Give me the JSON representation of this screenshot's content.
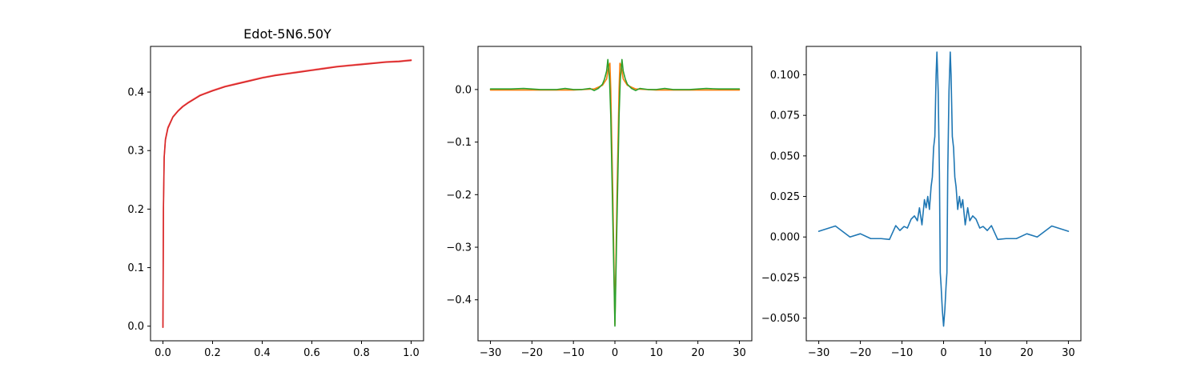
{
  "chart_data": [
    {
      "type": "line",
      "title": "Edot-5N6.50Y",
      "xlim": [
        -0.05,
        1.05
      ],
      "ylim": [
        -0.025,
        0.478
      ],
      "xticks": [
        "0.0",
        "0.2",
        "0.4",
        "0.6",
        "0.8",
        "1.0"
      ],
      "yticks": [
        "0.0",
        "0.1",
        "0.2",
        "0.3",
        "0.4"
      ],
      "grid": false,
      "series": [
        {
          "color": "#ff6f6f",
          "points": [
            [
              0,
              -0.002
            ],
            [
              0.002,
              0.2
            ],
            [
              0.005,
              0.29
            ],
            [
              0.01,
              0.32
            ],
            [
              0.02,
              0.34
            ],
            [
              0.04,
              0.358
            ],
            [
              0.06,
              0.368
            ],
            [
              0.08,
              0.376
            ],
            [
              0.1,
              0.382
            ],
            [
              0.15,
              0.395
            ],
            [
              0.2,
              0.403
            ],
            [
              0.25,
              0.41
            ],
            [
              0.3,
              0.415
            ],
            [
              0.35,
              0.42
            ],
            [
              0.4,
              0.425
            ],
            [
              0.45,
              0.429
            ],
            [
              0.5,
              0.432
            ],
            [
              0.55,
              0.435
            ],
            [
              0.6,
              0.438
            ],
            [
              0.65,
              0.441
            ],
            [
              0.7,
              0.444
            ],
            [
              0.75,
              0.446
            ],
            [
              0.8,
              0.448
            ],
            [
              0.85,
              0.45
            ],
            [
              0.9,
              0.452
            ],
            [
              0.95,
              0.453
            ],
            [
              1.0,
              0.455
            ]
          ]
        },
        {
          "color": "#d62728",
          "points": [
            [
              0,
              -0.002
            ],
            [
              0.002,
              0.2
            ],
            [
              0.005,
              0.288
            ],
            [
              0.01,
              0.318
            ],
            [
              0.02,
              0.338
            ],
            [
              0.04,
              0.357
            ],
            [
              0.06,
              0.367
            ],
            [
              0.08,
              0.375
            ],
            [
              0.1,
              0.381
            ],
            [
              0.15,
              0.394
            ],
            [
              0.2,
              0.402
            ],
            [
              0.25,
              0.409
            ],
            [
              0.3,
              0.414
            ],
            [
              0.35,
              0.419
            ],
            [
              0.4,
              0.424
            ],
            [
              0.45,
              0.428
            ],
            [
              0.5,
              0.431
            ],
            [
              0.55,
              0.434
            ],
            [
              0.6,
              0.437
            ],
            [
              0.65,
              0.44
            ],
            [
              0.7,
              0.443
            ],
            [
              0.75,
              0.445
            ],
            [
              0.8,
              0.447
            ],
            [
              0.85,
              0.449
            ],
            [
              0.9,
              0.451
            ],
            [
              0.95,
              0.452
            ],
            [
              1.0,
              0.454
            ]
          ]
        }
      ]
    },
    {
      "type": "line",
      "xlim": [
        -33,
        33
      ],
      "ylim": [
        -0.478,
        0.082
      ],
      "xticks": [
        "−30",
        "−20",
        "−10",
        "0",
        "10",
        "20",
        "30"
      ],
      "yticks": [
        "0.0",
        "−0.1",
        "−0.2",
        "−0.3",
        "−0.4"
      ],
      "grid": false,
      "series": [
        {
          "color": "#ff7f0e",
          "points": [
            [
              -30,
              -0.001
            ],
            [
              -20,
              -0.001
            ],
            [
              -10,
              -0.001
            ],
            [
              -5,
              0.001
            ],
            [
              -3,
              0.008
            ],
            [
              -2,
              0.02
            ],
            [
              -1.5,
              0.045
            ],
            [
              -1.2,
              0.05
            ],
            [
              -1,
              0.0
            ],
            [
              -0.5,
              -0.2
            ],
            [
              0,
              -0.447
            ],
            [
              0.5,
              -0.2
            ],
            [
              1,
              0.0
            ],
            [
              1.2,
              0.05
            ],
            [
              1.5,
              0.045
            ],
            [
              2,
              0.02
            ],
            [
              3,
              0.008
            ],
            [
              5,
              0.001
            ],
            [
              10,
              -0.001
            ],
            [
              20,
              -0.001
            ],
            [
              30,
              -0.001
            ]
          ]
        },
        {
          "color": "#2ca02c",
          "points": [
            [
              -30,
              0.001
            ],
            [
              -25,
              0.001
            ],
            [
              -22,
              0.002
            ],
            [
              -18,
              0.0
            ],
            [
              -14,
              0.0
            ],
            [
              -12,
              0.002
            ],
            [
              -10,
              0.0
            ],
            [
              -8,
              0.0
            ],
            [
              -6,
              0.002
            ],
            [
              -5,
              -0.002
            ],
            [
              -4,
              0.002
            ],
            [
              -3,
              0.01
            ],
            [
              -2.5,
              0.02
            ],
            [
              -2,
              0.035
            ],
            [
              -1.7,
              0.057
            ],
            [
              -1.3,
              0.02
            ],
            [
              -1,
              -0.05
            ],
            [
              -0.5,
              -0.25
            ],
            [
              0,
              -0.45
            ],
            [
              0.5,
              -0.25
            ],
            [
              1,
              -0.05
            ],
            [
              1.3,
              0.02
            ],
            [
              1.7,
              0.057
            ],
            [
              2,
              0.035
            ],
            [
              2.5,
              0.02
            ],
            [
              3,
              0.01
            ],
            [
              4,
              0.002
            ],
            [
              5,
              -0.002
            ],
            [
              6,
              0.002
            ],
            [
              8,
              0.0
            ],
            [
              10,
              0.0
            ],
            [
              12,
              0.002
            ],
            [
              14,
              0.0
            ],
            [
              18,
              0.0
            ],
            [
              22,
              0.002
            ],
            [
              25,
              0.001
            ],
            [
              30,
              0.001
            ]
          ]
        }
      ]
    },
    {
      "type": "line",
      "xlim": [
        -33,
        33
      ],
      "ylim": [
        -0.064,
        0.1175
      ],
      "xticks": [
        "−30",
        "−20",
        "−10",
        "0",
        "10",
        "20",
        "30"
      ],
      "yticks": [
        "0.100",
        "0.075",
        "0.050",
        "0.025",
        "0.000",
        "−0.025",
        "−0.050"
      ],
      "grid": false,
      "series": [
        {
          "color": "#1f77b4",
          "points": [
            [
              -30,
              0.0035
            ],
            [
              -26,
              0.0068
            ],
            [
              -22.5,
              0.0
            ],
            [
              -20,
              0.002
            ],
            [
              -17.5,
              -0.001
            ],
            [
              -15,
              -0.001
            ],
            [
              -13,
              -0.0015
            ],
            [
              -11.5,
              0.007
            ],
            [
              -10.5,
              0.004
            ],
            [
              -9.5,
              0.0065
            ],
            [
              -8.7,
              0.0055
            ],
            [
              -7.8,
              0.011
            ],
            [
              -7,
              0.013
            ],
            [
              -6.3,
              0.01
            ],
            [
              -5.8,
              0.018
            ],
            [
              -5.2,
              0.0075
            ],
            [
              -4.6,
              0.023
            ],
            [
              -4.2,
              0.018
            ],
            [
              -3.8,
              0.025
            ],
            [
              -3.4,
              0.017
            ],
            [
              -3,
              0.031
            ],
            [
              -2.7,
              0.037
            ],
            [
              -2.4,
              0.055
            ],
            [
              -2.1,
              0.062
            ],
            [
              -1.8,
              0.1
            ],
            [
              -1.6,
              0.114
            ],
            [
              -1.3,
              0.09
            ],
            [
              -1.0,
              0.04
            ],
            [
              -0.8,
              -0.022
            ],
            [
              -0.6,
              -0.03
            ],
            [
              -0.3,
              -0.045
            ],
            [
              0,
              -0.055
            ],
            [
              0.3,
              -0.045
            ],
            [
              0.6,
              -0.03
            ],
            [
              0.8,
              -0.022
            ],
            [
              1.0,
              0.04
            ],
            [
              1.3,
              0.09
            ],
            [
              1.6,
              0.114
            ],
            [
              1.8,
              0.1
            ],
            [
              2.1,
              0.062
            ],
            [
              2.4,
              0.055
            ],
            [
              2.7,
              0.037
            ],
            [
              3,
              0.031
            ],
            [
              3.4,
              0.017
            ],
            [
              3.8,
              0.025
            ],
            [
              4.2,
              0.018
            ],
            [
              4.6,
              0.023
            ],
            [
              5.2,
              0.0075
            ],
            [
              5.8,
              0.018
            ],
            [
              6.3,
              0.01
            ],
            [
              7,
              0.013
            ],
            [
              7.8,
              0.011
            ],
            [
              8.7,
              0.0055
            ],
            [
              9.5,
              0.0065
            ],
            [
              10.5,
              0.004
            ],
            [
              11.5,
              0.007
            ],
            [
              13,
              -0.0015
            ],
            [
              15,
              -0.001
            ],
            [
              17.5,
              -0.001
            ],
            [
              20,
              0.002
            ],
            [
              22.5,
              0.0
            ],
            [
              26,
              0.0068
            ],
            [
              30,
              0.0035
            ]
          ]
        }
      ]
    }
  ]
}
